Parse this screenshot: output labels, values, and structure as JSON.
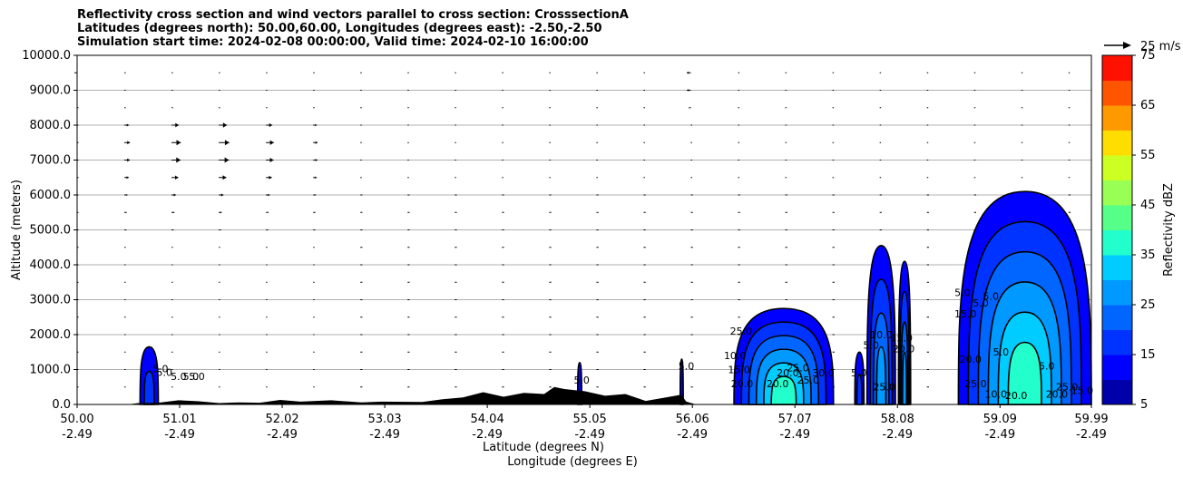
{
  "title_lines": [
    "Reflectivity cross section and wind vectors parallel to cross section: CrosssectionA",
    "Latitudes (degrees north): 50.00,60.00, Longitudes (degrees east): -2.50,-2.50",
    "Simulation start time: 2024-02-08 00:00:00, Valid time: 2024-02-10 16:00:00"
  ],
  "chart_data": {
    "type": "heatmap",
    "subtype": "filled-contour cross section with wind vectors",
    "ylabel": "Altitude (meters)",
    "xlabel_lines": [
      "Latitude (degrees N)",
      "Longitude (degrees E)"
    ],
    "xlim": [
      50.0,
      59.99
    ],
    "ylim": [
      0,
      10000
    ],
    "grid": "horizontal lines at each y tick",
    "x_ticks": [
      {
        "value": 50.0,
        "lat": "50.00",
        "lon": "-2.49"
      },
      {
        "value": 51.01,
        "lat": "51.01",
        "lon": "-2.49"
      },
      {
        "value": 52.02,
        "lat": "52.02",
        "lon": "-2.49"
      },
      {
        "value": 53.03,
        "lat": "53.03",
        "lon": "-2.49"
      },
      {
        "value": 54.04,
        "lat": "54.04",
        "lon": "-2.49"
      },
      {
        "value": 55.05,
        "lat": "55.05",
        "lon": "-2.49"
      },
      {
        "value": 56.06,
        "lat": "56.06",
        "lon": "-2.49"
      },
      {
        "value": 57.07,
        "lat": "57.07",
        "lon": "-2.49"
      },
      {
        "value": 58.08,
        "lat": "58.08",
        "lon": "-2.49"
      },
      {
        "value": 59.09,
        "lat": "59.09",
        "lon": "-2.49"
      },
      {
        "value": 59.99,
        "lat": "59.99",
        "lon": "-2.49"
      }
    ],
    "y_ticks": [
      {
        "value": 0,
        "label": "0.0"
      },
      {
        "value": 1000,
        "label": "1000.0"
      },
      {
        "value": 2000,
        "label": "2000.0"
      },
      {
        "value": 3000,
        "label": "3000.0"
      },
      {
        "value": 4000,
        "label": "4000.0"
      },
      {
        "value": 5000,
        "label": "5000.0"
      },
      {
        "value": 6000,
        "label": "6000.0"
      },
      {
        "value": 7000,
        "label": "7000.0"
      },
      {
        "value": 8000,
        "label": "8000.0"
      },
      {
        "value": 9000,
        "label": "9000.0"
      },
      {
        "value": 10000,
        "label": "10000.0"
      }
    ],
    "colorbar": {
      "label": "Reflectivity dBZ",
      "levels": [
        5,
        10,
        15,
        20,
        25,
        30,
        35,
        40,
        45,
        50,
        55,
        60,
        65,
        70,
        75
      ],
      "colors": [
        "#0000aa",
        "#0000ff",
        "#0033ff",
        "#0066ff",
        "#0099ff",
        "#00ccff",
        "#22ffcc",
        "#55ff88",
        "#99ff55",
        "#ccff22",
        "#ffdd00",
        "#ff9900",
        "#ff5500",
        "#ff1100",
        "#aa0000"
      ],
      "tick_labels": [
        "5",
        "15",
        "25",
        "35",
        "45",
        "55",
        "65",
        "75"
      ]
    },
    "quiver_key": {
      "label": "25 m/s",
      "speed": 25
    },
    "terrain_color": "#000000",
    "contour_line_color": "#000000",
    "reflectivity_cells": [
      {
        "lat_min": 50.62,
        "lat_max": 50.8,
        "top_m": 1650,
        "max_dbz": 15
      },
      {
        "lat_min": 54.93,
        "lat_max": 54.97,
        "top_m": 1200,
        "max_dbz": 10
      },
      {
        "lat_min": 55.94,
        "lat_max": 55.97,
        "top_m": 1300,
        "max_dbz": 10
      },
      {
        "lat_min": 56.47,
        "lat_max": 57.45,
        "top_m": 2750,
        "max_dbz": 35
      },
      {
        "lat_min": 57.66,
        "lat_max": 57.75,
        "top_m": 1500,
        "max_dbz": 15
      },
      {
        "lat_min": 57.78,
        "lat_max": 58.06,
        "top_m": 4550,
        "max_dbz": 25
      },
      {
        "lat_min": 58.09,
        "lat_max": 58.21,
        "top_m": 4100,
        "max_dbz": 25
      },
      {
        "lat_min": 58.68,
        "lat_max": 59.99,
        "top_m": 6100,
        "max_dbz": 35
      }
    ],
    "contour_labels": [
      "5.0",
      "5.0",
      "5.0",
      "5.0",
      "5.0",
      "5.0",
      "5.0",
      "10.0",
      "15.0",
      "20.0",
      "20.0",
      "20.0",
      "25.0",
      "25.0",
      "25.0",
      "30.0",
      "5.0",
      "5.0",
      "10.0",
      "15.0",
      "20.0",
      "25.0",
      "5.0",
      "15.0",
      "20.0",
      "25.0",
      "5.0",
      "5.0",
      "5.0",
      "10.0",
      "20.0",
      "20.0",
      "25.0",
      "15.0",
      "5.0"
    ],
    "wind_summary": "Strong eastward (positive) flow at 5000-8500 m for latitudes 50.5-52.4; weak flow elsewhere; westward vectors near 56.06 at 8500-9500 m and near 50.0 at 9500 m."
  }
}
